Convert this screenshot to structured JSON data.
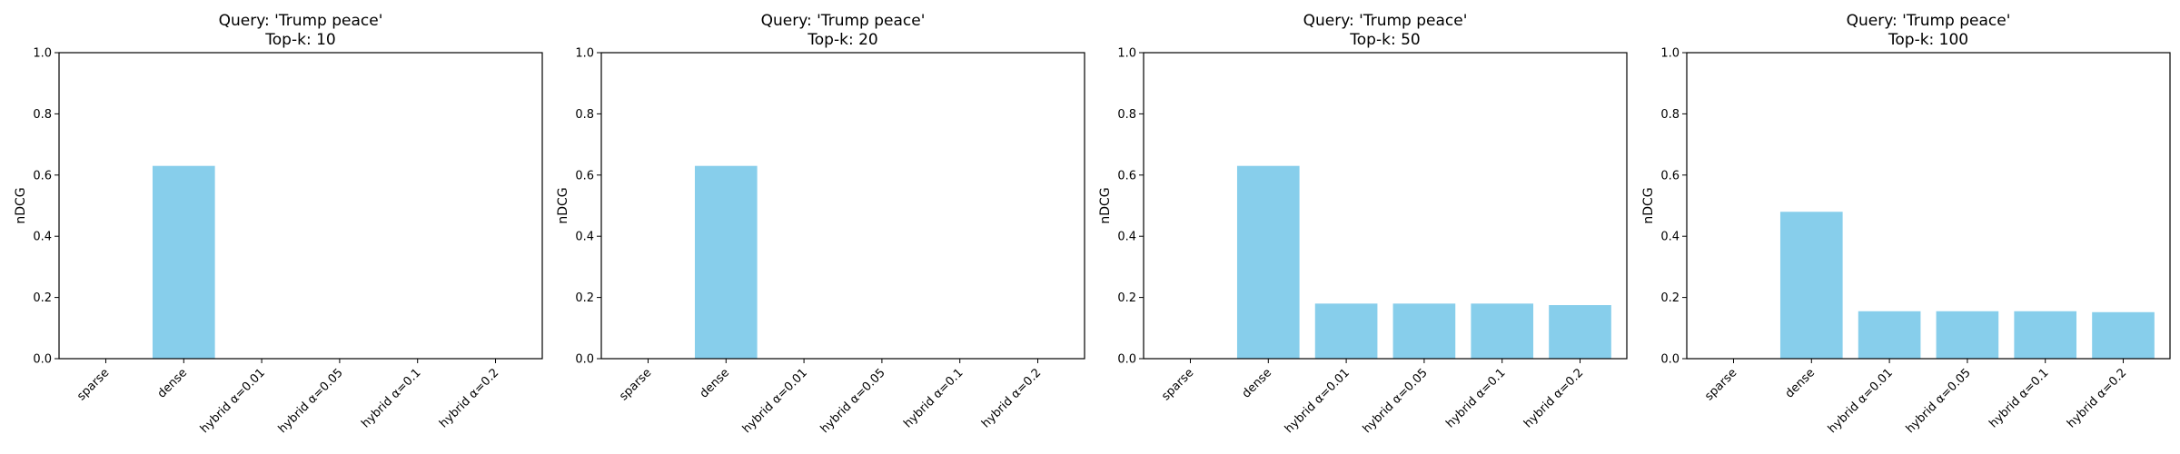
{
  "chart_data": [
    {
      "type": "bar",
      "title": "Query: 'Trump peace'",
      "subtitle": "Top-k: 10",
      "xlabel": "",
      "ylabel": "nDCG",
      "ylim": [
        0,
        1.0
      ],
      "yticks": [
        "0.0",
        "0.2",
        "0.4",
        "0.6",
        "0.8",
        "1.0"
      ],
      "categories": [
        "sparse",
        "dense",
        "hybrid α=0.01",
        "hybrid α=0.05",
        "hybrid α=0.1",
        "hybrid α=0.2"
      ],
      "values": [
        0.0,
        0.63,
        0.0,
        0.0,
        0.0,
        0.0
      ],
      "bar_color": "#87ceeb",
      "grid": false
    },
    {
      "type": "bar",
      "title": "Query: 'Trump peace'",
      "subtitle": "Top-k: 20",
      "xlabel": "",
      "ylabel": "nDCG",
      "ylim": [
        0,
        1.0
      ],
      "yticks": [
        "0.0",
        "0.2",
        "0.4",
        "0.6",
        "0.8",
        "1.0"
      ],
      "categories": [
        "sparse",
        "dense",
        "hybrid α=0.01",
        "hybrid α=0.05",
        "hybrid α=0.1",
        "hybrid α=0.2"
      ],
      "values": [
        0.0,
        0.63,
        0.0,
        0.0,
        0.0,
        0.0
      ],
      "bar_color": "#87ceeb",
      "grid": false
    },
    {
      "type": "bar",
      "title": "Query: 'Trump peace'",
      "subtitle": "Top-k: 50",
      "xlabel": "",
      "ylabel": "nDCG",
      "ylim": [
        0,
        1.0
      ],
      "yticks": [
        "0.0",
        "0.2",
        "0.4",
        "0.6",
        "0.8",
        "1.0"
      ],
      "categories": [
        "sparse",
        "dense",
        "hybrid α=0.01",
        "hybrid α=0.05",
        "hybrid α=0.1",
        "hybrid α=0.2"
      ],
      "values": [
        0.0,
        0.63,
        0.18,
        0.18,
        0.18,
        0.175
      ],
      "bar_color": "#87ceeb",
      "grid": false
    },
    {
      "type": "bar",
      "title": "Query: 'Trump peace'",
      "subtitle": "Top-k: 100",
      "xlabel": "",
      "ylabel": "nDCG",
      "ylim": [
        0,
        1.0
      ],
      "yticks": [
        "0.0",
        "0.2",
        "0.4",
        "0.6",
        "0.8",
        "1.0"
      ],
      "categories": [
        "sparse",
        "dense",
        "hybrid α=0.01",
        "hybrid α=0.05",
        "hybrid α=0.1",
        "hybrid α=0.2"
      ],
      "values": [
        0.0,
        0.48,
        0.155,
        0.155,
        0.155,
        0.152
      ],
      "bar_color": "#87ceeb",
      "grid": false
    }
  ]
}
